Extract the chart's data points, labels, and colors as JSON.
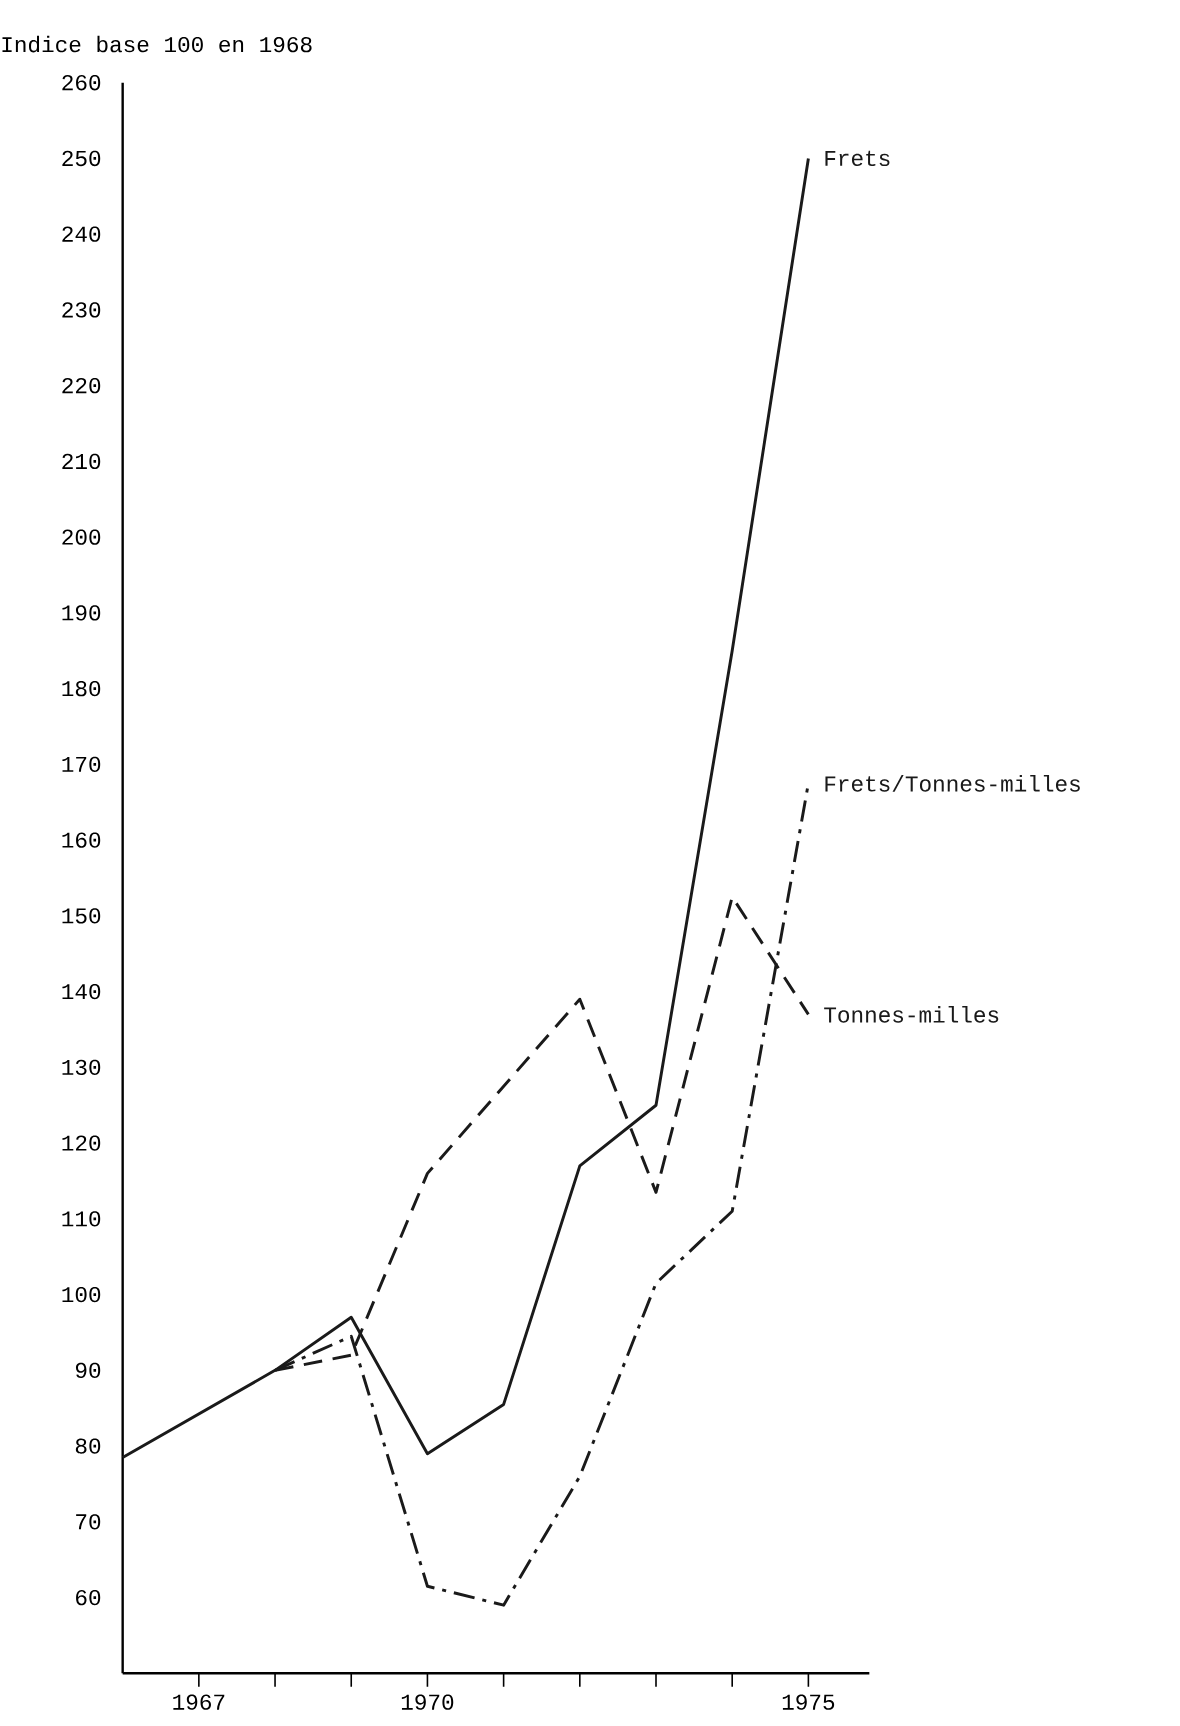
{
  "chart_data": {
    "type": "line",
    "ylabel": "Indice base 100 en 1968",
    "series": [
      {
        "name": "Frets",
        "color": "#1a1a1a",
        "line_style": "solid",
        "x": [
          1966,
          1968,
          1969,
          1970,
          1971,
          1972,
          1973,
          1974,
          1975
        ],
        "values": [
          78.5,
          90,
          97,
          79,
          85.5,
          117,
          125,
          185,
          250
        ]
      },
      {
        "name": "Frets/Tonnes-milles",
        "color": "#1a1a1a",
        "line_style": "dashdot",
        "x": [
          1968,
          1969,
          1970,
          1971,
          1972,
          1973,
          1974,
          1975
        ],
        "values": [
          90,
          94.5,
          61.5,
          59,
          76,
          101.5,
          111,
          167.5
        ]
      },
      {
        "name": "Tonnes-milles",
        "color": "#1a1a1a",
        "line_style": "dashed",
        "x": [
          1968,
          1969,
          1970,
          1971,
          1972,
          1973,
          1974,
          1975
        ],
        "values": [
          90,
          92,
          116,
          127.5,
          139,
          113.5,
          152.5,
          137
        ]
      }
    ],
    "xlim": [
      1966,
      1975.8
    ],
    "ylim": [
      50,
      260
    ],
    "xticks": [
      1967,
      {
        "value": 1968,
        "label": null
      },
      {
        "value": 1969,
        "label": null
      },
      1970,
      {
        "value": 1971,
        "label": null
      },
      {
        "value": 1972,
        "label": null
      },
      {
        "value": 1973,
        "label": null
      },
      {
        "value": 1974,
        "label": null
      },
      1975
    ],
    "yticks": [
      60,
      70,
      80,
      90,
      100,
      110,
      120,
      130,
      140,
      150,
      160,
      170,
      180,
      190,
      200,
      210,
      220,
      230,
      240,
      250,
      260
    ],
    "grid": false,
    "marker": "none"
  }
}
